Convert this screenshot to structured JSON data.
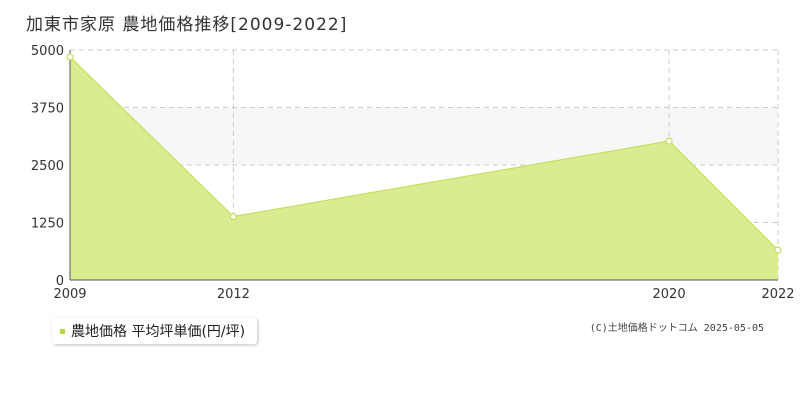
{
  "title": "加東市家原 農地価格推移[2009-2022]",
  "legend": {
    "label": "農地価格 平均坪単価(円/坪)",
    "swatch_color": "#b5d93a"
  },
  "copyright": "(C)土地価格ドットコム 2025-05-05",
  "colors": {
    "fill": "#d9ec91",
    "line": "#c4e05c",
    "marker_fill": "#ffffff",
    "grid": "#cccccc",
    "band": "#f7f7f9",
    "axis": "#555555"
  },
  "chart_data": {
    "type": "area",
    "categories": [
      "2009",
      "2012",
      "2020",
      "2022"
    ],
    "series": [
      {
        "values": [
          4850,
          1380,
          3020,
          650
        ]
      }
    ],
    "yticks": [
      "0",
      "1250",
      "2500",
      "3750",
      "5000"
    ],
    "ylim": [
      0,
      5000
    ],
    "xlabel": "",
    "ylabel": "",
    "grid": true
  }
}
